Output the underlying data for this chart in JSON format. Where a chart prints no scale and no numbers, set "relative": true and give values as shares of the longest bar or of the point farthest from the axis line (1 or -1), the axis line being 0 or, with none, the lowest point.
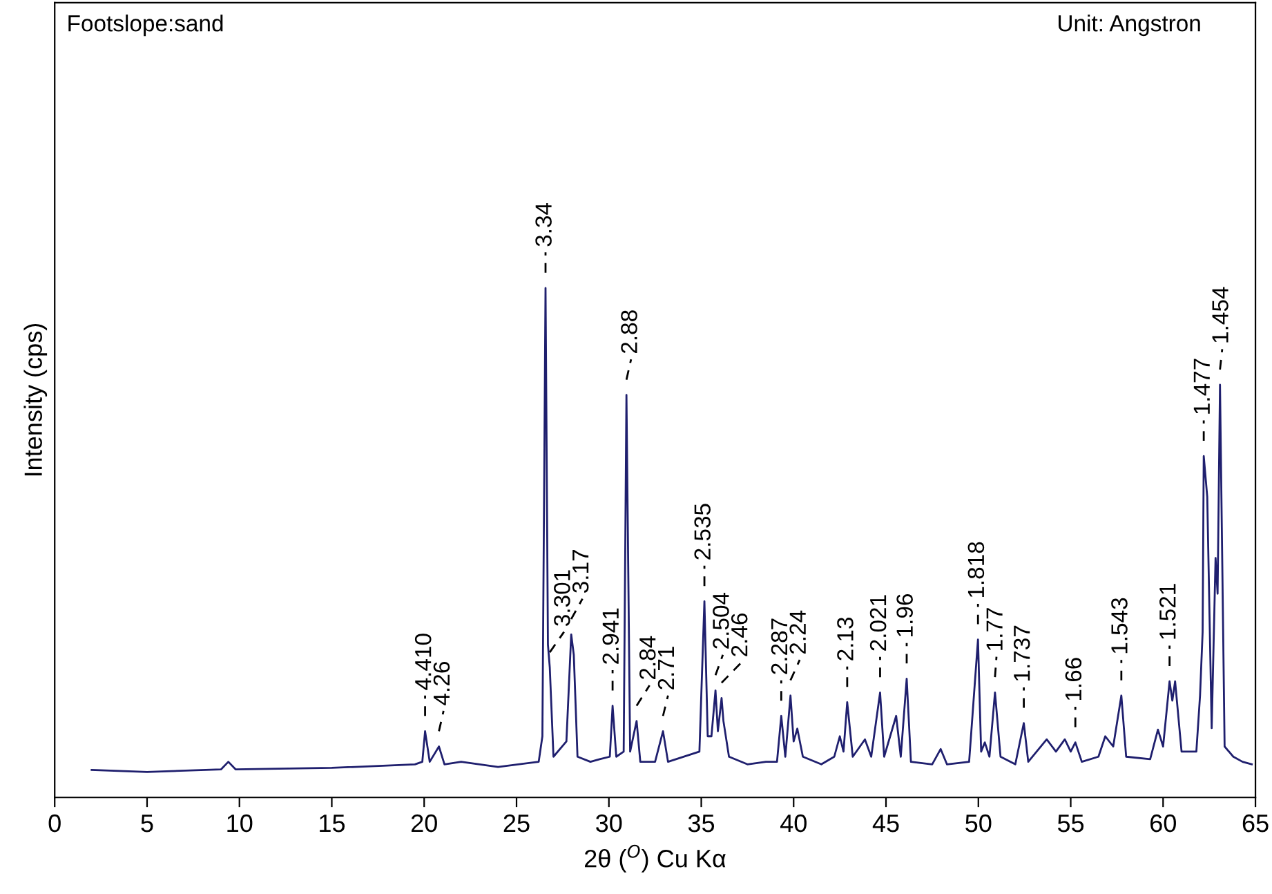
{
  "chart_data": {
    "type": "line",
    "relative": true,
    "xlabel": "2θ ($^{O}$) Cu Kα",
    "ylabel": "Intensity (cps)",
    "xlim": [
      0,
      65
    ],
    "xticks": [
      0,
      5,
      10,
      15,
      20,
      25,
      30,
      35,
      40,
      45,
      50,
      55,
      60,
      65
    ],
    "grid": false,
    "marker": "none",
    "line_style": "solid",
    "series": [
      {
        "color": "#1f1f6e",
        "x": [
          2.0,
          5,
          9.0,
          9.4,
          9.8,
          15,
          19.5,
          19.9,
          20.05,
          20.3,
          20.8,
          21.1,
          22,
          24,
          26.2,
          26.4,
          26.57,
          26.7,
          26.8,
          27.0,
          27.7,
          27.96,
          28.1,
          28.3,
          29.0,
          29.5,
          30.05,
          30.2,
          30.4,
          30.8,
          30.95,
          31.15,
          31.5,
          31.7,
          32.5,
          32.93,
          33.2,
          34.9,
          35.17,
          35.35,
          35.55,
          35.77,
          35.9,
          36.1,
          36.2,
          36.5,
          37.5,
          38.5,
          39.1,
          39.33,
          39.55,
          39.83,
          40.0,
          40.2,
          40.5,
          41.5,
          42.2,
          42.5,
          42.7,
          42.9,
          43.2,
          43.86,
          44.2,
          44.68,
          44.9,
          45.55,
          45.8,
          46.12,
          46.35,
          47.5,
          47.96,
          48.3,
          49.5,
          49.98,
          50.15,
          50.35,
          50.6,
          50.9,
          51.2,
          52.0,
          52.46,
          52.7,
          53.7,
          54.2,
          54.68,
          55.0,
          55.25,
          55.6,
          56.5,
          56.87,
          57.3,
          57.74,
          58.0,
          59.3,
          59.72,
          60.0,
          60.35,
          60.5,
          60.65,
          61.0,
          61.8,
          62.0,
          62.14,
          62.2,
          62.39,
          62.63,
          62.84,
          62.95,
          63.08,
          63.33,
          63.8,
          64.3,
          64.8
        ],
        "values": [
          0.054,
          0.05,
          0.055,
          0.07,
          0.055,
          0.058,
          0.065,
          0.07,
          0.13,
          0.07,
          0.1,
          0.065,
          0.07,
          0.06,
          0.07,
          0.12,
          1.0,
          0.3,
          0.255,
          0.08,
          0.11,
          0.32,
          0.28,
          0.08,
          0.07,
          0.075,
          0.08,
          0.18,
          0.08,
          0.09,
          0.79,
          0.09,
          0.15,
          0.07,
          0.07,
          0.13,
          0.07,
          0.09,
          0.385,
          0.12,
          0.12,
          0.21,
          0.13,
          0.195,
          0.15,
          0.08,
          0.065,
          0.07,
          0.07,
          0.16,
          0.08,
          0.2,
          0.11,
          0.135,
          0.08,
          0.065,
          0.08,
          0.12,
          0.09,
          0.187,
          0.08,
          0.114,
          0.08,
          0.206,
          0.08,
          0.16,
          0.08,
          0.233,
          0.07,
          0.065,
          0.095,
          0.065,
          0.07,
          0.31,
          0.09,
          0.108,
          0.08,
          0.206,
          0.08,
          0.065,
          0.146,
          0.07,
          0.114,
          0.09,
          0.114,
          0.09,
          0.108,
          0.07,
          0.08,
          0.12,
          0.1,
          0.2,
          0.08,
          0.075,
          0.133,
          0.1,
          0.228,
          0.19,
          0.228,
          0.09,
          0.09,
          0.2,
          0.325,
          0.67,
          0.59,
          0.136,
          0.47,
          0.4,
          0.81,
          0.1,
          0.08,
          0.07,
          0.065
        ]
      }
    ],
    "annotations": [
      "Footslope:sand",
      "Unit: Angstron",
      {
        "text": "4.410",
        "x": 20.05,
        "y": 0.13
      },
      {
        "text": "4.26",
        "x": 20.8,
        "y": 0.1
      },
      {
        "text": "3.34",
        "x": 26.57,
        "y": 1.0
      },
      {
        "text": "3.301",
        "x": 26.8,
        "y": 0.255
      },
      {
        "text": "3.17",
        "x": 27.96,
        "y": 0.32
      },
      {
        "text": "2.941",
        "x": 30.2,
        "y": 0.18
      },
      {
        "text": "2.88",
        "x": 30.95,
        "y": 0.79
      },
      {
        "text": "2.84",
        "x": 31.5,
        "y": 0.15
      },
      {
        "text": "2.71",
        "x": 32.93,
        "y": 0.13
      },
      {
        "text": "2.535",
        "x": 35.17,
        "y": 0.385
      },
      {
        "text": "2.504",
        "x": 35.77,
        "y": 0.21
      },
      {
        "text": "2.46",
        "x": 36.1,
        "y": 0.195
      },
      {
        "text": "2.287",
        "x": 39.33,
        "y": 0.16
      },
      {
        "text": "2.24",
        "x": 39.83,
        "y": 0.2
      },
      {
        "text": "2.13",
        "x": 42.9,
        "y": 0.187
      },
      {
        "text": "2.021",
        "x": 44.68,
        "y": 0.206
      },
      {
        "text": "1.96",
        "x": 46.12,
        "y": 0.233
      },
      {
        "text": "1.818",
        "x": 49.98,
        "y": 0.31
      },
      {
        "text": "1.77",
        "x": 50.9,
        "y": 0.206
      },
      {
        "text": "1.737",
        "x": 52.46,
        "y": 0.146
      },
      {
        "text": "1.66",
        "x": 55.25,
        "y": 0.108
      },
      {
        "text": "1.543",
        "x": 57.74,
        "y": 0.2
      },
      {
        "text": "1.521",
        "x": 60.35,
        "y": 0.228
      },
      {
        "text": "1.477",
        "x": 62.2,
        "y": 0.67
      },
      {
        "text": "1.454",
        "x": 63.08,
        "y": 0.81
      }
    ]
  }
}
